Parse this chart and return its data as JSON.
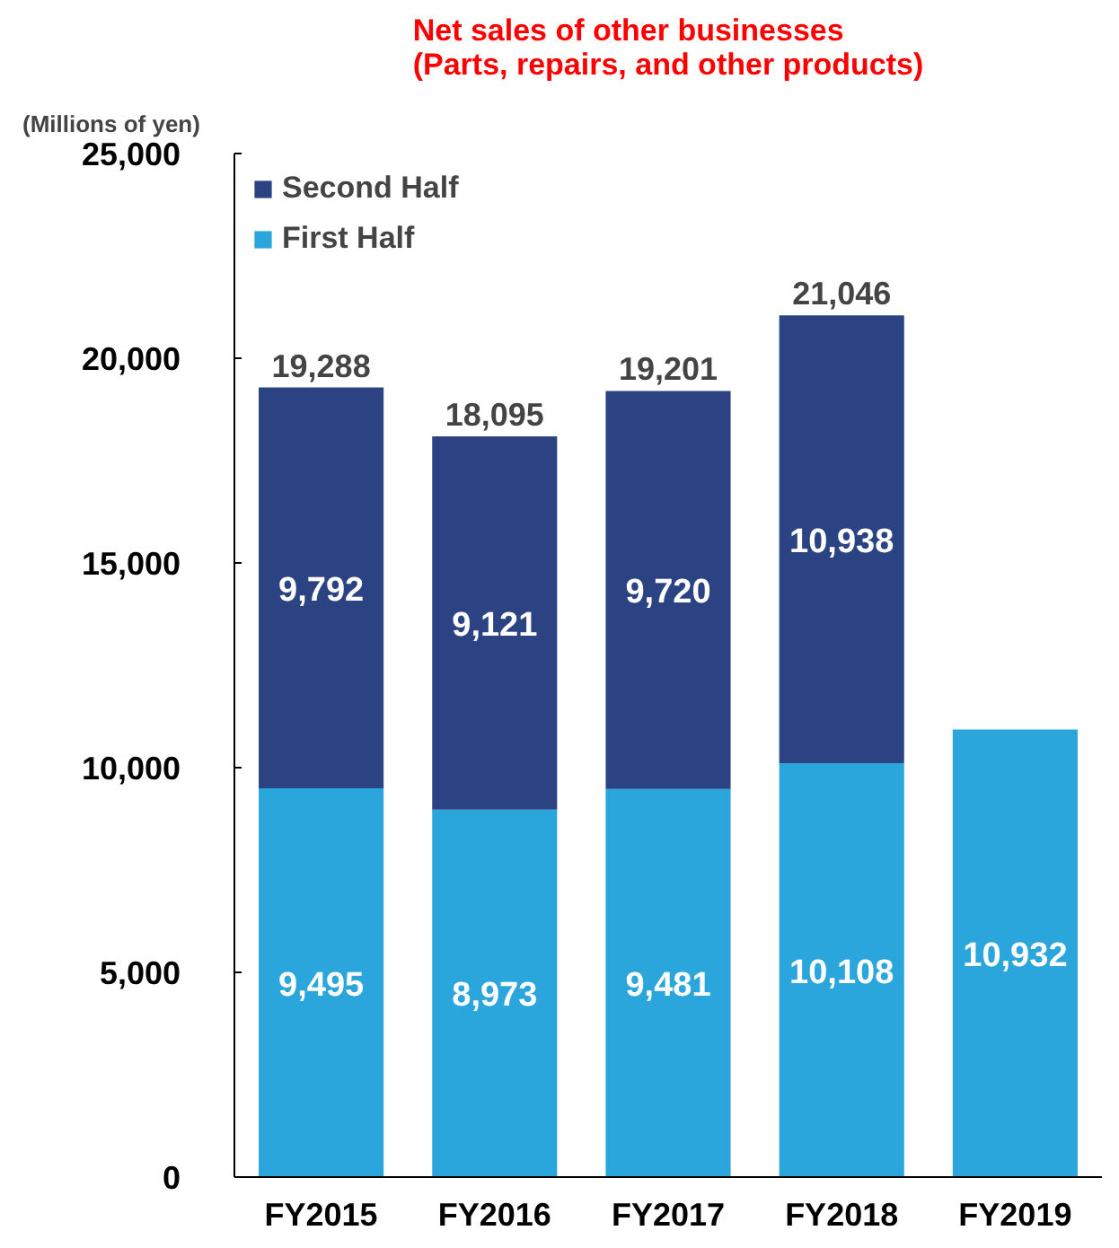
{
  "chart_data": {
    "type": "bar",
    "stacked": true,
    "title": "Net sales of other businesses\n(Parts, repairs, and other products)",
    "ylabel": "(Millions of yen)",
    "categories": [
      "FY2015",
      "FY2016",
      "FY2017",
      "FY2018",
      "FY2019"
    ],
    "series": [
      {
        "name": "First Half",
        "color": "#2ba6dc",
        "values": [
          9495,
          8973,
          9481,
          10108,
          10932
        ],
        "value_labels": [
          "9,495",
          "8,973",
          "9,481",
          "10,108",
          "10,932"
        ]
      },
      {
        "name": "Second Half",
        "color": "#2b4283",
        "values": [
          9792,
          9121,
          9720,
          10938,
          null
        ],
        "value_labels": [
          "9,792",
          "9,121",
          "9,720",
          "10,938",
          null
        ]
      }
    ],
    "totals": [
      "19,288",
      "18,095",
      "19,201",
      "21,046",
      null
    ],
    "ylim": [
      0,
      25000
    ],
    "yticks": [
      {
        "value": 0,
        "label": "0"
      },
      {
        "value": 5000,
        "label": "5,000"
      },
      {
        "value": 10000,
        "label": "10,000"
      },
      {
        "value": 15000,
        "label": "15,000"
      },
      {
        "value": 20000,
        "label": "20,000"
      },
      {
        "value": 25000,
        "label": "25,000"
      }
    ],
    "grid": false,
    "legend": "top left"
  }
}
